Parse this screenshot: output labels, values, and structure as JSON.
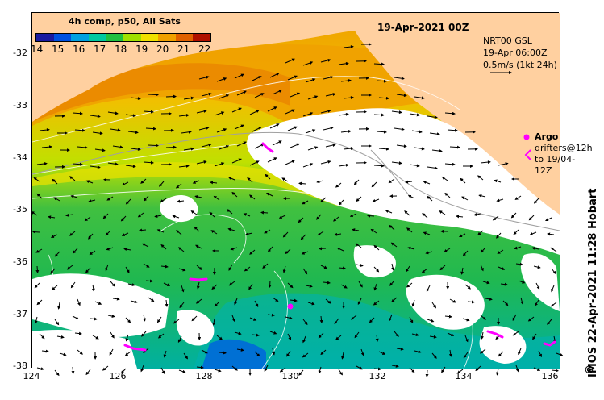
{
  "title": "19-Apr-2021 00Z",
  "colorbar": {
    "label": "4h comp, p50, All Sats",
    "ticks": [
      "14",
      "15",
      "16",
      "17",
      "18",
      "19",
      "20",
      "21",
      "22"
    ],
    "colors": [
      "#1a1aa0",
      "#0050e0",
      "#00a0e0",
      "#00c8a0",
      "#20c040",
      "#a0e000",
      "#f0e000",
      "#f0a000",
      "#e06000",
      "#b01000"
    ]
  },
  "current_legend": {
    "line1": "NRT00 GSL",
    "line2": "19-Apr 06:00Z",
    "line3": "0.5m/s (1kt 24h)"
  },
  "argo_legend": {
    "argo": "Argo",
    "line1": "drifters@12h",
    "line2": "to 19/04-12Z"
  },
  "credit": "IMOS 22-Apr-2021 11:28 Hobart",
  "copyright": "©",
  "axes": {
    "y_ticks": [
      "-32",
      "-33",
      "-34",
      "-35",
      "-36",
      "-37",
      "-38"
    ],
    "x_ticks": [
      "124",
      "126",
      "128",
      "130",
      "132",
      "134",
      "136"
    ]
  },
  "colors": {
    "land": "#ffd0a0",
    "cloud": "#ffffff",
    "argo": "#ff00ff"
  }
}
